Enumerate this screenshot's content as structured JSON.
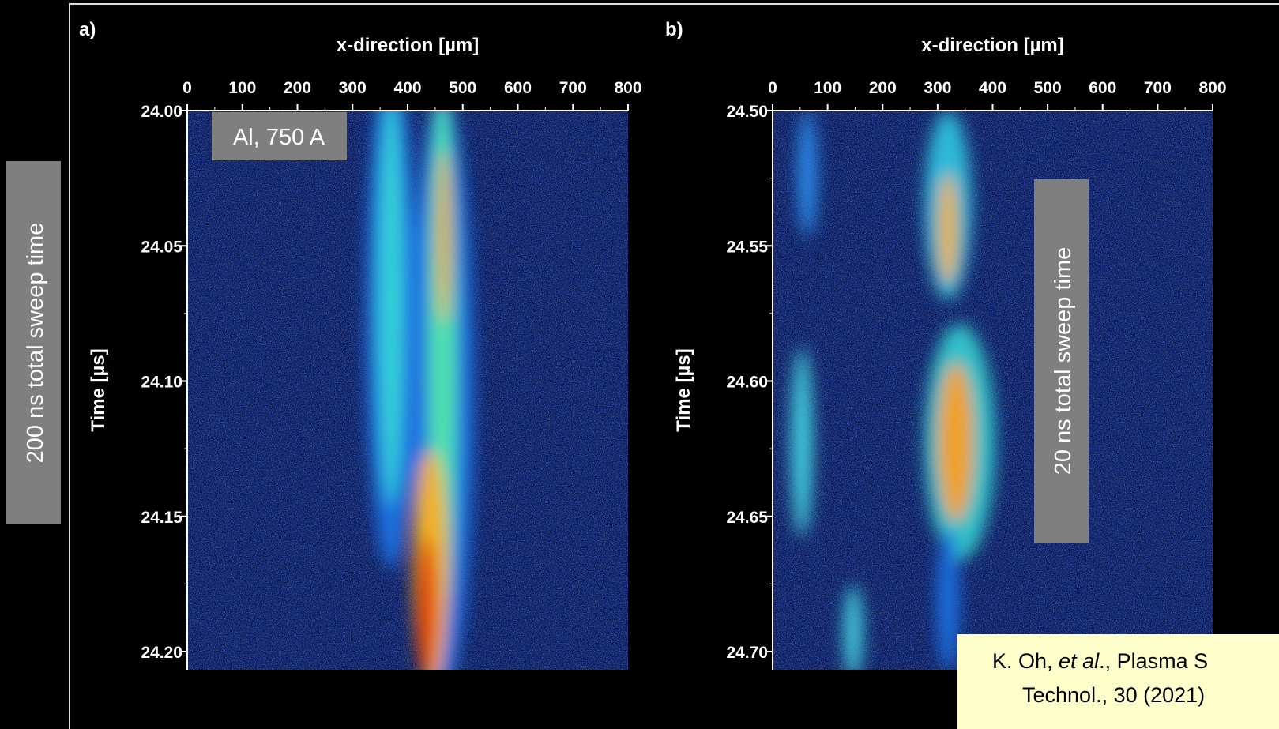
{
  "left_label": "200 ns total sweep time",
  "panels": [
    {
      "label": "a)",
      "x_title": "x-direction [µm]",
      "x_ticks": [
        "0",
        "100",
        "200",
        "300",
        "400",
        "500",
        "600",
        "700",
        "800"
      ],
      "y_title": "Time [µs]",
      "y_ticks": [
        "24.00",
        "24.05",
        "24.10",
        "24.15",
        "24.20"
      ],
      "annotation": "Al, 750 A"
    },
    {
      "label": "b)",
      "x_title": "x-direction [µm]",
      "x_ticks": [
        "0",
        "100",
        "200",
        "300",
        "400",
        "500",
        "600",
        "700",
        "800"
      ],
      "y_title": "Time [µs]",
      "y_ticks": [
        "24.50",
        "24.55",
        "24.60",
        "24.65",
        "24.70"
      ],
      "annotation": "20 ns total sweep time"
    }
  ],
  "citation": {
    "line1_a": "K. Oh, ",
    "line1_b": "et al",
    "line1_c": "., Plasma S",
    "line2": "Technol., 30 (2021)"
  }
}
